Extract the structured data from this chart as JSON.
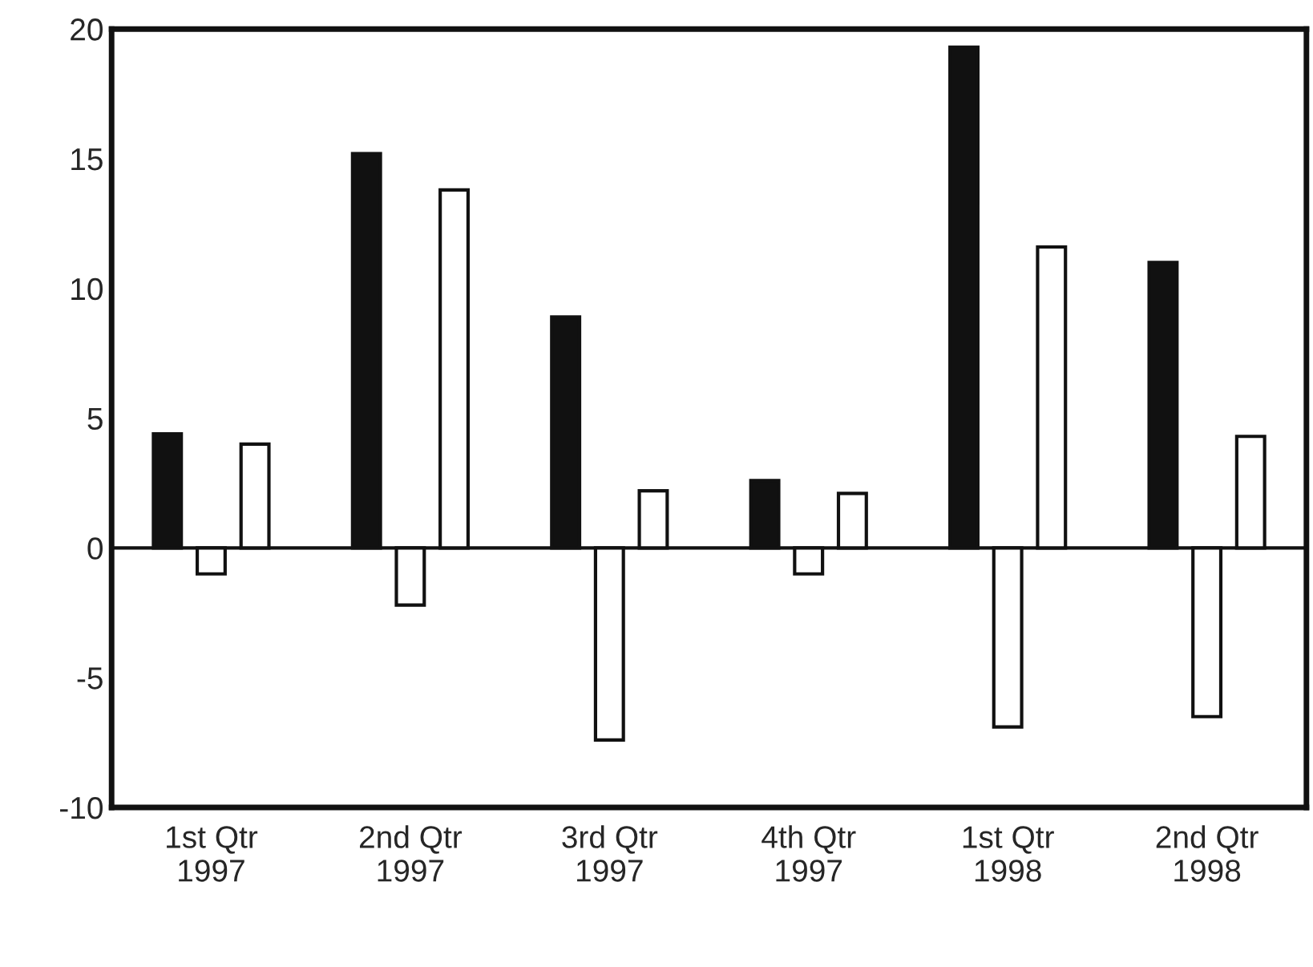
{
  "chart_data": {
    "type": "bar",
    "categories": [
      "1st Qtr\n1997",
      "2nd Qtr\n1997",
      "3rd Qtr\n1997",
      "4th Qtr\n1997",
      "1st Qtr\n1998",
      "2nd Qtr\n1998"
    ],
    "series": [
      {
        "color": "#111111",
        "values": [
          4.4,
          15.2,
          8.9,
          2.6,
          19.3,
          11.0
        ]
      },
      {
        "color": "#ffffff",
        "values": [
          -1.0,
          -2.2,
          -7.4,
          -1.0,
          -6.9,
          -6.5
        ]
      },
      {
        "color": "#ffffff",
        "values": [
          4.0,
          13.8,
          2.2,
          2.1,
          11.6,
          4.3
        ]
      }
    ],
    "ylim": [
      -10,
      20
    ],
    "yticks": [
      -10,
      -5,
      0,
      5,
      10,
      15,
      20
    ],
    "ref_lines": [
      {
        "axis": "y",
        "value": 0,
        "color": "#111111"
      }
    ],
    "grid": false,
    "legend": false
  }
}
